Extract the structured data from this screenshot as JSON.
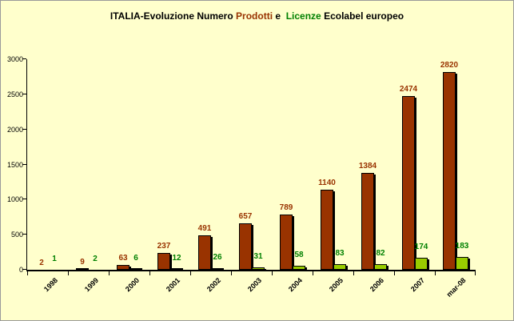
{
  "title": {
    "full_text": "ITALIA-Evoluzione Numero Prodotti e  Licenze Ecolabel europeo",
    "segments": [
      {
        "text": "ITALIA-Evoluzione Numero ",
        "color": "#000000"
      },
      {
        "text": "Prodotti",
        "color": "#993300"
      },
      {
        "text": " e ",
        "color": "#000000"
      },
      {
        "text": " Licenze",
        "color": "#008000"
      },
      {
        "text": " Ecolabel europeo",
        "color": "#000000"
      }
    ]
  },
  "colors": {
    "background": "#FFFFCC",
    "axis": "#000000",
    "prodotti_bar": "#993300",
    "licenze_bar": "#99CC00",
    "prodotti_label": "#993300",
    "licenze_label": "#008000"
  },
  "chart_data": {
    "type": "bar",
    "title": "ITALIA-Evoluzione Numero Prodotti e  Licenze Ecolabel europeo",
    "categories": [
      "1998",
      "1999",
      "2000",
      "2001",
      "2002",
      "2003",
      "2004",
      "2005",
      "2006",
      "2007",
      "mar-08"
    ],
    "series": [
      {
        "name": "Prodotti",
        "color": "#993300",
        "label_color": "#993300",
        "values": [
          2,
          9,
          63,
          237,
          491,
          657,
          789,
          1140,
          1384,
          2474,
          2820
        ]
      },
      {
        "name": "Licenze",
        "color": "#99CC00",
        "label_color": "#008000",
        "values": [
          1,
          2,
          6,
          12,
          26,
          31,
          58,
          83,
          82,
          174,
          183
        ]
      }
    ],
    "xlabel": "",
    "ylabel": "",
    "ylim": [
      0,
      3000
    ],
    "yticks": [
      0,
      500,
      1000,
      1500,
      2000,
      2500,
      3000
    ],
    "grid": false,
    "legend_position": "none",
    "data_labels": true
  }
}
